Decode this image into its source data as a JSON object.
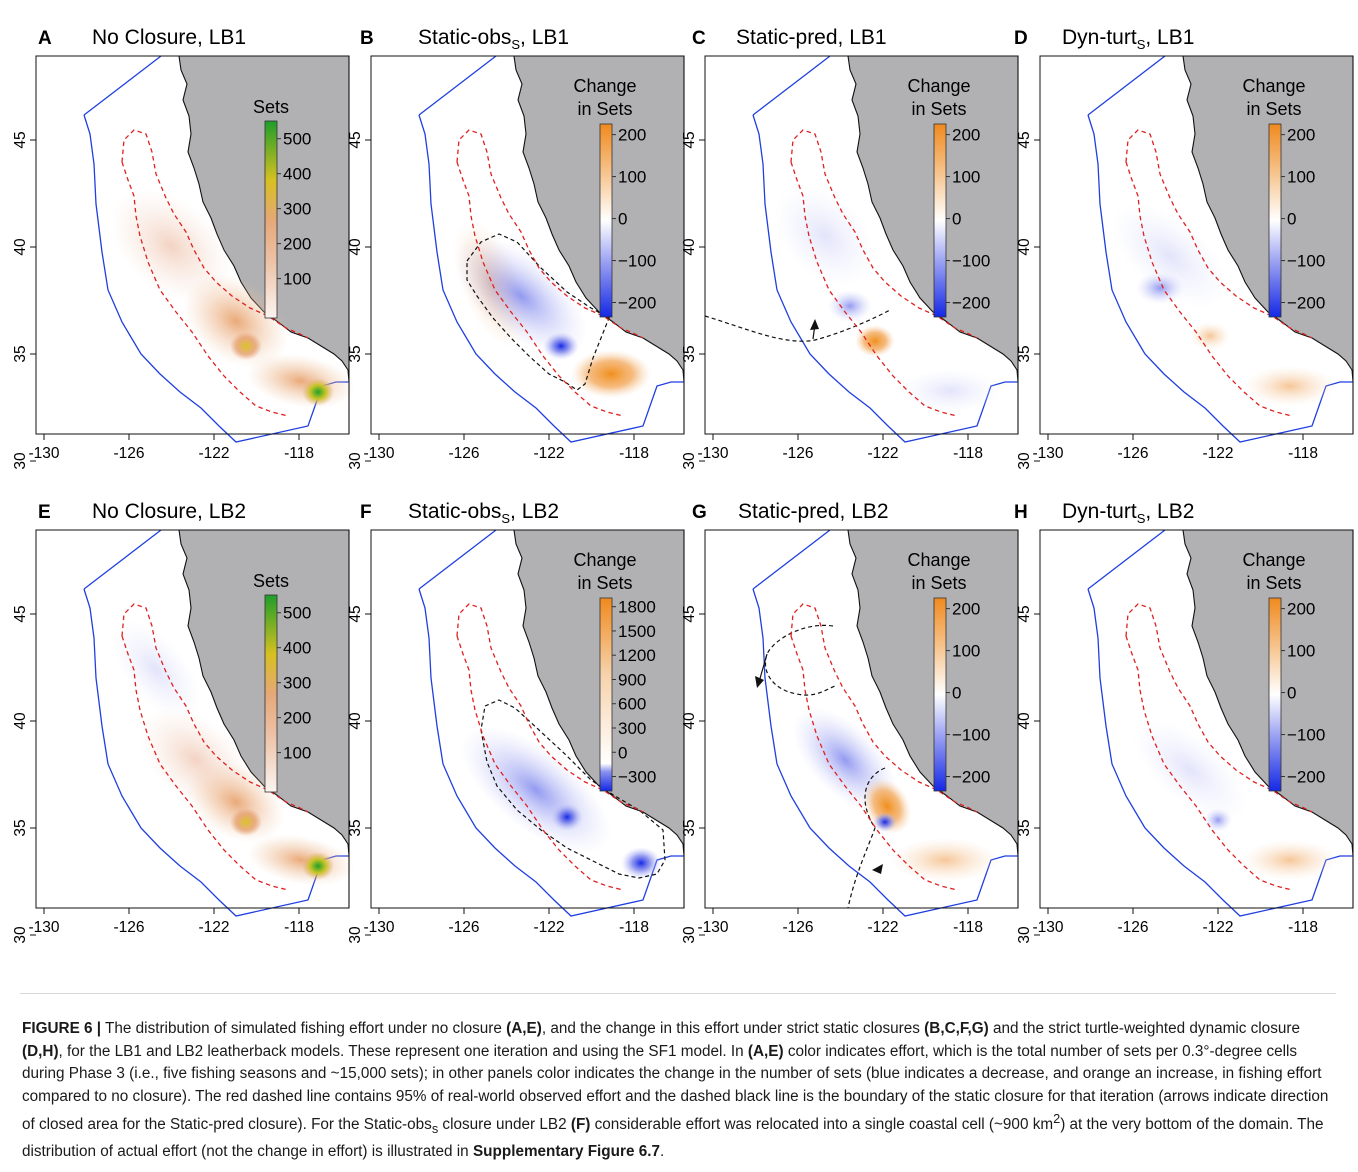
{
  "panels": [
    {
      "letter": "A",
      "title": "No Closure, LB1",
      "legend_type": "sets",
      "legend_title": [
        "Sets"
      ],
      "legend_ticks": [
        "500",
        "400",
        "300",
        "200",
        "100"
      ]
    },
    {
      "letter": "B",
      "title": "Static-obs",
      "title_sub": "S",
      "title_suffix": ", LB1",
      "legend_type": "change",
      "legend_title": [
        "Change",
        "in Sets"
      ],
      "legend_ticks": [
        "200",
        "100",
        "0",
        "−100",
        "−200"
      ]
    },
    {
      "letter": "C",
      "title": "Static-pred, LB1",
      "legend_type": "change",
      "legend_title": [
        "Change",
        "in Sets"
      ],
      "legend_ticks": [
        "200",
        "100",
        "0",
        "−100",
        "−200"
      ]
    },
    {
      "letter": "D",
      "title": "Dyn-turt",
      "title_sub": "S",
      "title_suffix": ", LB1",
      "legend_type": "change",
      "legend_title": [
        "Change",
        "in Sets"
      ],
      "legend_ticks": [
        "200",
        "100",
        "0",
        "−100",
        "−200"
      ]
    },
    {
      "letter": "E",
      "title": "No Closure, LB2",
      "legend_type": "sets",
      "legend_title": [
        "Sets"
      ],
      "legend_ticks": [
        "500",
        "400",
        "300",
        "200",
        "100"
      ]
    },
    {
      "letter": "F",
      "title": "Static-obs",
      "title_sub": "S",
      "title_suffix": ", LB2",
      "legend_type": "change_wide",
      "legend_title": [
        "Change",
        "in Sets"
      ],
      "legend_ticks": [
        "1800",
        "1500",
        "1200",
        "900",
        "600",
        "300",
        "0",
        "−300"
      ]
    },
    {
      "letter": "G",
      "title": "Static-pred, LB2",
      "legend_type": "change",
      "legend_title": [
        "Change",
        "in Sets"
      ],
      "legend_ticks": [
        "200",
        "100",
        "0",
        "−100",
        "−200"
      ]
    },
    {
      "letter": "H",
      "title": "Dyn-turt",
      "title_sub": "S",
      "title_suffix": ", LB2",
      "legend_type": "change",
      "legend_title": [
        "Change",
        "in Sets"
      ],
      "legend_ticks": [
        "200",
        "100",
        "0",
        "−100",
        "−200"
      ]
    }
  ],
  "axes": {
    "x_ticks": [
      "-130",
      "-126",
      "-122",
      "-118"
    ],
    "y_ticks": [
      "45",
      "40",
      "35",
      "30"
    ]
  },
  "colors": {
    "coast_fill": "#b1b1b3",
    "boundary": "#1f3fe0",
    "observed_effort_line": "#e02020",
    "closure_line": "#111111",
    "increase": "#f08a1e",
    "decrease": "#1428e6",
    "high_sets": "#1e9e2a"
  },
  "caption": {
    "label": "FIGURE 6 |",
    "p1": " The distribution of simulated fishing effort under no closure ",
    "r1": "(A,E)",
    "p2": ", and the change in this effort under strict static closures ",
    "r2": "(B,C,F,G)",
    "p3": " and the strict turtle-weighted dynamic closure ",
    "r3": "(D,H)",
    "p4": ", for the LB1 and LB2 leatherback models. These represent one iteration and using the SF1 model. In ",
    "r4": "(A,E)",
    "p5": " color indicates effort, which is the total number of sets per 0.3°-degree cells during Phase 3 (i.e., five fishing seasons and ~15,000 sets); in other panels color indicates the change in the number of sets (blue indicates a decrease, and orange an increase, in fishing effort compared to no closure). The red dashed line contains 95% of real-world observed effort and the dashed black line is the boundary of the static closure for that iteration (arrows indicate direction of closed area for the Static-pred closure). For the Static-obs",
    "sub1": "s",
    "p6": " closure under LB2 ",
    "r5": "(F)",
    "p7": " considerable effort was relocated into a single coastal cell (~900 km",
    "sup1": "2",
    "p8": ") at the very bottom of the domain. The distribution of actual effort (not the change in effort) is illustrated in ",
    "ref": "Supplementary Figure 6.7",
    "p9": "."
  }
}
